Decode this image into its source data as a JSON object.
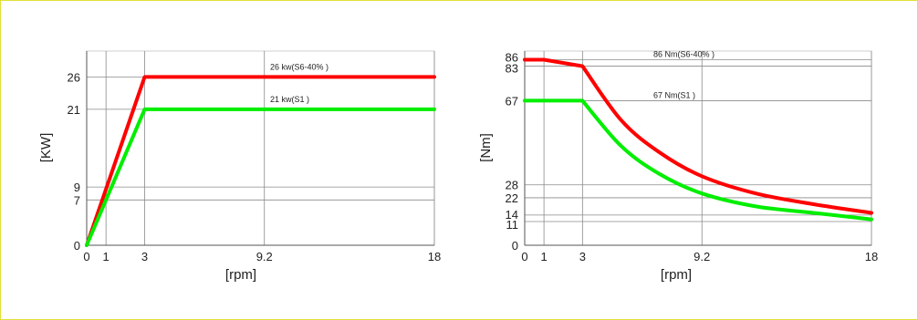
{
  "colors": {
    "s6": "#ff0000",
    "s1": "#00ee00",
    "frame": "#e3e03a",
    "grid": "#8a8a8a"
  },
  "chart_data": [
    {
      "type": "line",
      "xlabel": "[rpm]",
      "ylabel": "[KW]",
      "xticks": [
        0,
        1,
        3,
        9.2,
        18
      ],
      "xtick_labels": [
        "0",
        "1",
        "3",
        "9.2",
        "18"
      ],
      "yticks": [
        0,
        7,
        9,
        21,
        26
      ],
      "ytick_labels": [
        "0",
        "7",
        "9",
        "21",
        "26"
      ],
      "xlim": [
        0,
        18
      ],
      "ylim": [
        0,
        30
      ],
      "grid": true,
      "series": [
        {
          "name": "26 kw(S6-40% )",
          "color_key": "s6",
          "x": [
            0,
            3,
            18
          ],
          "y": [
            0,
            26,
            26
          ]
        },
        {
          "name": "21 kw(S1 )",
          "color_key": "s1",
          "x": [
            0,
            3,
            18
          ],
          "y": [
            0,
            21,
            21
          ]
        }
      ]
    },
    {
      "type": "line",
      "xlabel": "[rpm]",
      "ylabel": "[Nm]",
      "xticks": [
        0,
        1,
        3,
        9.2,
        18
      ],
      "xtick_labels": [
        "0",
        "1",
        "3",
        "9.2",
        "18"
      ],
      "yticks": [
        0,
        11,
        14,
        22,
        28,
        67,
        83,
        86
      ],
      "ytick_labels": [
        "0",
        "11",
        "14",
        "22",
        "28",
        "67",
        "83",
        "86"
      ],
      "xlim": [
        0,
        18
      ],
      "ylim": [
        0,
        90
      ],
      "grid": true,
      "series": [
        {
          "name": "86 Nm(S6-40% )",
          "color_key": "s6",
          "x": [
            0,
            1,
            3,
            5,
            7,
            9.2,
            12,
            15,
            18
          ],
          "y": [
            86,
            86,
            83,
            58,
            43,
            32,
            24,
            19,
            15
          ]
        },
        {
          "name": "67 Nm(S1 )",
          "color_key": "s1",
          "x": [
            0,
            3,
            5,
            7,
            9.2,
            12,
            15,
            18
          ],
          "y": [
            67,
            67,
            46,
            33,
            24,
            18,
            15,
            12
          ]
        }
      ]
    }
  ]
}
